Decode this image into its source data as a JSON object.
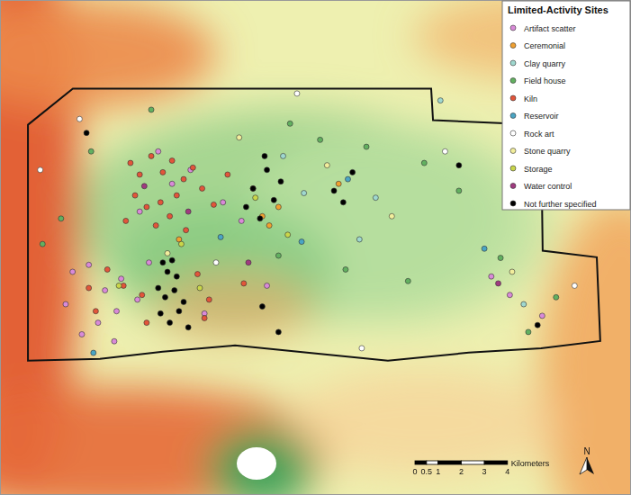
{
  "chart_data": {
    "type": "map",
    "legend_title": "Limited-Activity Sites",
    "legend": "top-right",
    "tick_labels": false,
    "xlim": [
      0,
      27.2
    ],
    "ylim": [
      0,
      21.3
    ],
    "boundary": {
      "x": [
        1.17,
        3.11,
        18.6,
        18.68,
        23.35,
        23.42,
        25.76,
        25.91,
        23.35,
        20.23,
        16.73,
        12.84,
        10.12,
        7.0,
        4.28,
        1.17
      ],
      "y": [
        15.95,
        17.51,
        17.51,
        16.15,
        15.95,
        10.51,
        10.23,
        6.61,
        6.3,
        6.11,
        5.76,
        6.15,
        6.42,
        6.15,
        5.84,
        5.76
      ]
    },
    "series": [
      {
        "name": "Artifact scatter",
        "color": "#d98ad8",
        "x": [
          3.1,
          3.8,
          4.5,
          5.2,
          5.9,
          6.4,
          4.2,
          3.5,
          5.0,
          2.8,
          7.4,
          8.2,
          9.6,
          10.4,
          6.0,
          6.8,
          21.2,
          22.0,
          23.4,
          11.5,
          8.8,
          4.9
        ],
        "y": [
          9.6,
          9.9,
          8.8,
          9.3,
          8.4,
          10.0,
          7.4,
          6.9,
          7.9,
          8.2,
          13.4,
          14.0,
          12.6,
          11.8,
          12.2,
          14.8,
          9.4,
          8.6,
          7.7,
          9.0,
          7.8,
          6.6
        ]
      },
      {
        "name": "Ceremonial",
        "color": "#f0a030",
        "x": [
          11.3,
          11.6,
          12.0,
          14.6,
          10.9,
          7.7
        ],
        "y": [
          12.0,
          11.6,
          12.4,
          13.4,
          13.2,
          11.0
        ]
      },
      {
        "name": "Clay quarry",
        "color": "#9fd8cf",
        "x": [
          12.2,
          13.1,
          16.2,
          19.0,
          15.5,
          22.6
        ],
        "y": [
          14.6,
          13.0,
          12.8,
          17.0,
          11.0,
          8.2
        ]
      },
      {
        "name": "Field house",
        "color": "#62b060",
        "x": [
          2.6,
          1.8,
          6.5,
          12.5,
          13.8,
          15.8,
          18.3,
          19.8,
          21.6,
          24.0,
          3.9,
          17.6,
          14.9,
          12.0,
          22.8
        ],
        "y": [
          11.9,
          10.8,
          16.6,
          16.0,
          15.3,
          15.0,
          14.3,
          13.1,
          10.2,
          8.5,
          14.8,
          9.2,
          9.7,
          10.3,
          7.0
        ]
      },
      {
        "name": "Kiln",
        "color": "#e2553a",
        "x": [
          5.6,
          6.0,
          6.5,
          7.0,
          7.4,
          7.9,
          8.3,
          5.8,
          6.3,
          6.9,
          7.6,
          8.7,
          9.2,
          5.4,
          6.7,
          7.3,
          8.0,
          9.8,
          4.6,
          5.3,
          6.1,
          8.5,
          9.0,
          10.5,
          3.8,
          4.1,
          6.3,
          8.8
        ],
        "y": [
          14.3,
          13.8,
          14.6,
          13.9,
          14.4,
          13.6,
          14.1,
          12.9,
          12.4,
          12.6,
          12.9,
          13.2,
          12.5,
          11.8,
          11.6,
          12.0,
          11.4,
          13.8,
          9.7,
          9.0,
          8.6,
          9.5,
          8.4,
          9.1,
          8.9,
          7.9,
          7.4,
          7.6
        ]
      },
      {
        "name": "Reservoir",
        "color": "#4aa5c4",
        "x": [
          9.5,
          13.0,
          15.0,
          20.9,
          4.0
        ],
        "y": [
          11.1,
          10.9,
          13.6,
          10.6,
          6.1
        ]
      },
      {
        "name": "Rock art",
        "color": "#ffffff",
        "x": [
          1.7,
          3.4,
          12.8,
          19.2,
          24.8,
          15.6,
          9.3
        ],
        "y": [
          14.0,
          16.2,
          17.3,
          14.8,
          9.0,
          6.3,
          10.0
        ]
      },
      {
        "name": "Stone quarry",
        "color": "#f2ee9c",
        "x": [
          10.3,
          14.1,
          16.9,
          7.2,
          22.1
        ],
        "y": [
          15.4,
          14.2,
          12.0,
          10.4,
          9.6
        ]
      },
      {
        "name": "Storage",
        "color": "#c9d64a",
        "x": [
          7.8,
          11.0,
          12.4,
          8.6,
          5.1
        ],
        "y": [
          10.8,
          12.8,
          11.2,
          8.9,
          9.0
        ]
      },
      {
        "name": "Water control",
        "color": "#a03a80",
        "x": [
          6.2,
          8.1,
          10.7,
          21.5
        ],
        "y": [
          13.3,
          12.2,
          10.0,
          9.1
        ]
      },
      {
        "name": "Not further specified",
        "color": "#000000",
        "x": [
          3.7,
          11.4,
          7.0,
          7.2,
          7.4,
          7.6,
          6.8,
          7.1,
          7.5,
          7.9,
          6.9,
          7.3,
          7.7,
          8.1,
          10.6,
          10.9,
          11.2,
          11.8,
          12.1,
          11.5,
          14.4,
          14.8,
          15.2,
          19.8,
          23.2,
          12.0,
          11.3
        ],
        "y": [
          15.6,
          14.6,
          10.0,
          9.6,
          10.1,
          9.4,
          8.9,
          8.5,
          8.8,
          8.3,
          7.8,
          7.4,
          7.9,
          7.2,
          12.4,
          13.2,
          11.9,
          12.7,
          13.5,
          14.0,
          13.1,
          12.6,
          13.9,
          14.2,
          7.3,
          7.0,
          8.1
        ]
      }
    ],
    "scale_bar": {
      "ticks": [
        0,
        0.5,
        1,
        2,
        3,
        4
      ],
      "label": "Kilometers"
    },
    "north_arrow": "N"
  }
}
